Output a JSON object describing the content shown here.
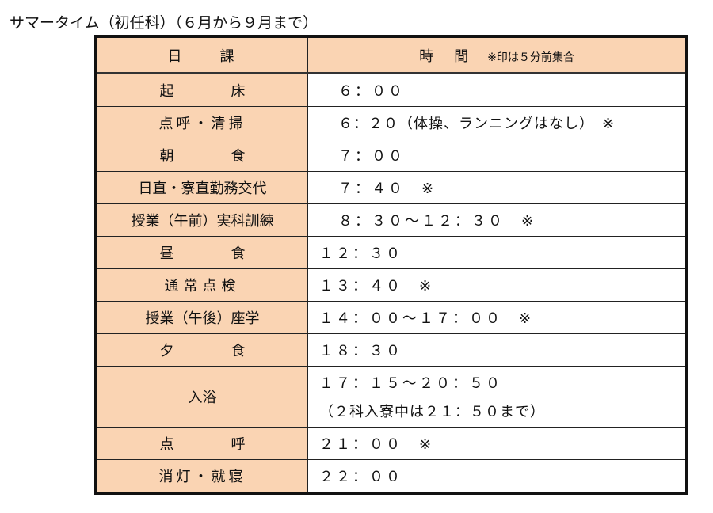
{
  "title": "サマータイム（初任科）（６月から９月まで）",
  "header": {
    "col1": "日　　課",
    "col2": "時　間",
    "note": "※印は５分前集合"
  },
  "rows": [
    {
      "label": "起　　　　床",
      "time": "６：００"
    },
    {
      "label": "点呼・清掃",
      "time": "６：２０（体操、ランニングはなし）　※"
    },
    {
      "label": "朝　　　　食",
      "time": "７：００"
    },
    {
      "label": "日直・寮直勤務交代",
      "time": "７：４０　※"
    },
    {
      "label": "授業（午前）実科訓練",
      "time": "８：３０～１２：３０　※"
    },
    {
      "label": "昼　　　　食",
      "time": "１２：３０"
    },
    {
      "label": "通常点検",
      "time": "１３：４０　※"
    },
    {
      "label": "授業（午後）座学",
      "time": "１４：００～１７：００　※"
    },
    {
      "label": "夕　　　　食",
      "time": "１８：３０"
    },
    {
      "label": "入浴",
      "time": "１７：１５～２０：５０",
      "time2": "（２科入寮中は２１：５０まで）"
    },
    {
      "label": "点　　　　呼",
      "time": "２１：００　※"
    },
    {
      "label": "消灯・就寝",
      "time": "２２：００"
    }
  ]
}
